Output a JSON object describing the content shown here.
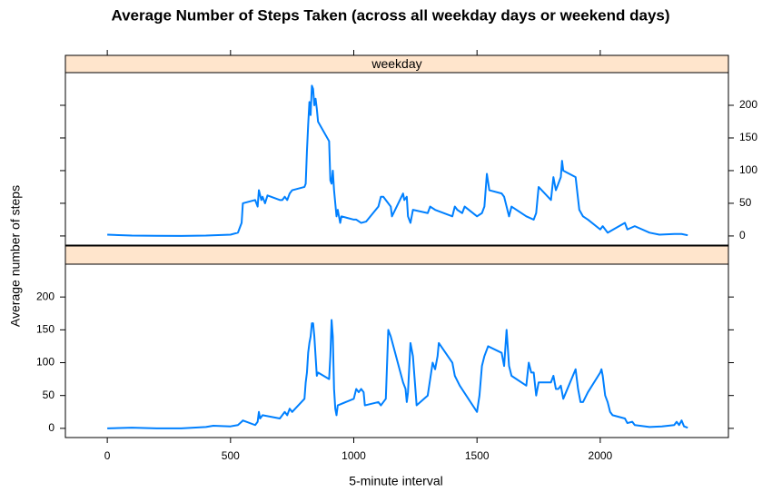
{
  "chart_data": {
    "type": "line",
    "title": "Average Number of Steps Taken (across all weekday days or weekend days)",
    "xlabel": "5-minute interval",
    "ylabel": "Average number of steps",
    "color": "#0080ff",
    "strip_color": "#ffe5cc",
    "xlim": [
      -170,
      2520
    ],
    "xticks": [
      0,
      500,
      1000,
      1500,
      2000
    ],
    "ylim": [
      -14,
      250
    ],
    "yticks": [
      0,
      50,
      100,
      150,
      200
    ],
    "panels": [
      {
        "strip": "weekday",
        "x": [
          0,
          100,
          200,
          300,
          400,
          500,
          530,
          545,
          550,
          600,
          610,
          615,
          625,
          630,
          640,
          650,
          700,
          710,
          720,
          730,
          740,
          750,
          800,
          805,
          810,
          815,
          820,
          825,
          830,
          835,
          840,
          845,
          850,
          855,
          900,
          905,
          910,
          915,
          920,
          930,
          935,
          945,
          950,
          1000,
          1010,
          1030,
          1050,
          1100,
          1110,
          1120,
          1130,
          1150,
          1155,
          1200,
          1205,
          1215,
          1220,
          1230,
          1240,
          1300,
          1310,
          1330,
          1400,
          1410,
          1420,
          1440,
          1450,
          1500,
          1520,
          1530,
          1540,
          1550,
          1600,
          1610,
          1630,
          1640,
          1700,
          1730,
          1740,
          1745,
          1750,
          1800,
          1810,
          1820,
          1840,
          1845,
          1850,
          1900,
          1915,
          1930,
          1950,
          2000,
          2010,
          2030,
          2100,
          2110,
          2140,
          2200,
          2240,
          2300,
          2330,
          2355
        ],
        "values": [
          2,
          0.5,
          0.3,
          0.1,
          0.5,
          2,
          5,
          20,
          50,
          55,
          45,
          70,
          55,
          60,
          50,
          62,
          55,
          55,
          60,
          55,
          65,
          70,
          75,
          80,
          130,
          170,
          205,
          185,
          230,
          225,
          200,
          210,
          195,
          175,
          145,
          85,
          80,
          100,
          70,
          30,
          40,
          20,
          30,
          25,
          25,
          20,
          22,
          45,
          60,
          60,
          55,
          45,
          30,
          65,
          55,
          60,
          30,
          20,
          40,
          35,
          45,
          40,
          30,
          45,
          40,
          35,
          45,
          30,
          35,
          45,
          95,
          70,
          65,
          60,
          30,
          45,
          30,
          25,
          35,
          55,
          75,
          55,
          90,
          70,
          90,
          115,
          100,
          90,
          40,
          30,
          25,
          10,
          15,
          5,
          20,
          10,
          15,
          5,
          2,
          3,
          3,
          1
        ]
      },
      {
        "strip": null,
        "x": [
          0,
          100,
          200,
          300,
          400,
          430,
          500,
          530,
          545,
          550,
          600,
          610,
          615,
          620,
          630,
          700,
          720,
          730,
          740,
          750,
          800,
          805,
          810,
          815,
          820,
          825,
          830,
          835,
          840,
          845,
          850,
          855,
          900,
          905,
          910,
          915,
          920,
          925,
          930,
          935,
          1000,
          1010,
          1020,
          1030,
          1040,
          1045,
          1100,
          1110,
          1130,
          1140,
          1150,
          1200,
          1210,
          1215,
          1220,
          1230,
          1240,
          1255,
          1300,
          1310,
          1320,
          1330,
          1340,
          1345,
          1400,
          1410,
          1430,
          1500,
          1510,
          1520,
          1530,
          1545,
          1600,
          1610,
          1620,
          1630,
          1640,
          1700,
          1710,
          1720,
          1730,
          1740,
          1750,
          1800,
          1810,
          1820,
          1830,
          1840,
          1850,
          1900,
          1910,
          1920,
          1930,
          1950,
          2000,
          2005,
          2010,
          2020,
          2030,
          2040,
          2050,
          2100,
          2110,
          2130,
          2140,
          2200,
          2250,
          2300,
          2310,
          2320,
          2330,
          2340,
          2355
        ],
        "values": [
          0,
          1,
          0,
          0,
          2,
          4,
          3,
          5,
          10,
          12,
          5,
          10,
          25,
          15,
          20,
          15,
          25,
          20,
          30,
          25,
          45,
          70,
          85,
          115,
          130,
          140,
          160,
          160,
          140,
          110,
          80,
          85,
          75,
          110,
          165,
          140,
          60,
          30,
          20,
          35,
          45,
          60,
          55,
          60,
          55,
          35,
          40,
          35,
          45,
          150,
          140,
          70,
          60,
          40,
          55,
          130,
          110,
          35,
          50,
          75,
          100,
          90,
          110,
          130,
          100,
          80,
          65,
          25,
          50,
          95,
          110,
          125,
          115,
          95,
          150,
          95,
          80,
          65,
          100,
          85,
          85,
          50,
          70,
          70,
          80,
          60,
          60,
          65,
          45,
          90,
          60,
          40,
          40,
          55,
          85,
          90,
          80,
          50,
          40,
          25,
          20,
          15,
          8,
          10,
          5,
          2,
          3,
          5,
          10,
          5,
          12,
          3,
          1
        ]
      }
    ]
  }
}
